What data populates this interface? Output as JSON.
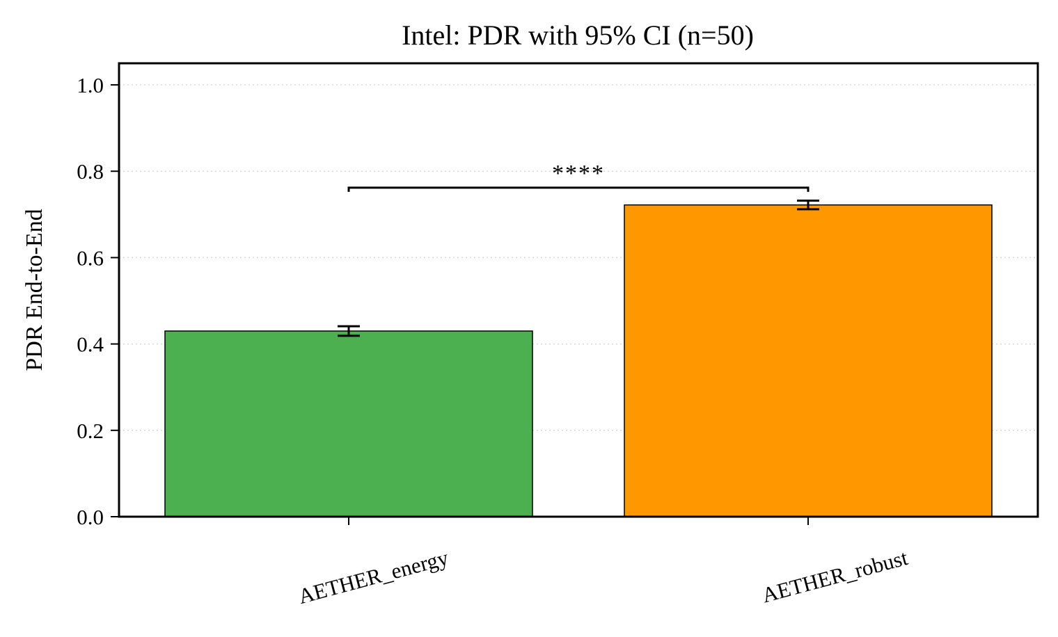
{
  "chart_data": {
    "type": "bar",
    "title": "Intel: PDR with 95% CI (n=50)",
    "xlabel": "",
    "ylabel": "PDR End-to-End",
    "categories": [
      "AETHER_energy",
      "AETHER_robust"
    ],
    "values": [
      0.43,
      0.722
    ],
    "ci_error": [
      0.011,
      0.01
    ],
    "colors": [
      "#4caf50",
      "#ff9800"
    ],
    "bar_edge_color": "#000000",
    "ylim": [
      0,
      1.05
    ],
    "yticks": [
      0.0,
      0.2,
      0.4,
      0.6,
      0.8,
      1.0
    ],
    "ytick_labels": [
      "0.0",
      "0.2",
      "0.4",
      "0.6",
      "0.8",
      "1.0"
    ],
    "grid": "y-dotted",
    "significance": {
      "between": [
        "AETHER_energy",
        "AETHER_robust"
      ],
      "label": "****",
      "bracket_y": 0.762
    }
  }
}
